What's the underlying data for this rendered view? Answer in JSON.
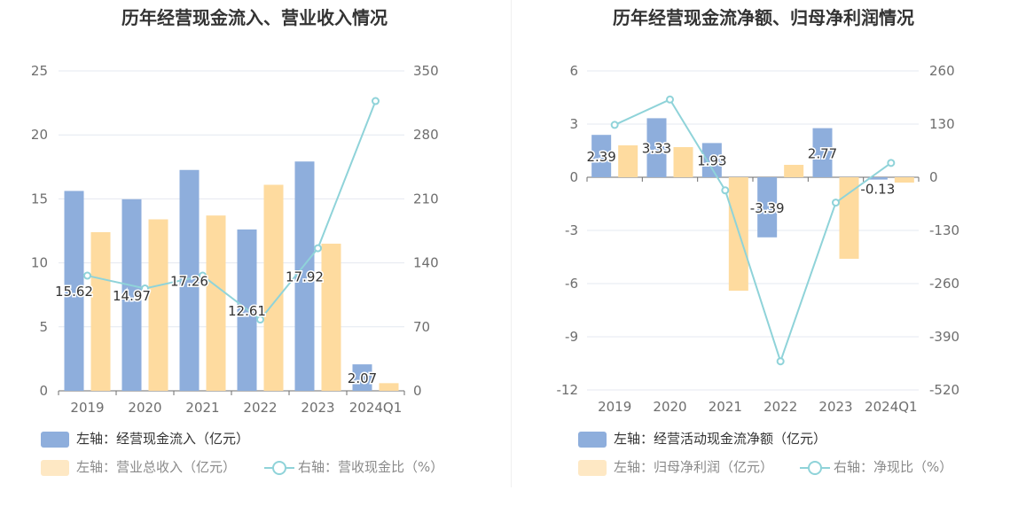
{
  "colors": {
    "bar1": "#8eaedc",
    "bar2": "#fedb9f",
    "line": "#8fd3d9",
    "grid": "#e4e8f0",
    "axis": "#6e6e6e"
  },
  "chart_data": [
    {
      "type": "bar",
      "title": "历年经营现金流入、营业收入情况",
      "categories": [
        "2019",
        "2020",
        "2021",
        "2022",
        "2023",
        "2024Q1"
      ],
      "y_left": {
        "min": 0,
        "max": 25,
        "ticks": [
          "0",
          "5",
          "10",
          "15",
          "20",
          "25"
        ]
      },
      "y_right": {
        "min": 0,
        "max": 350,
        "ticks": [
          "0",
          "70",
          "140",
          "210",
          "280",
          "350"
        ]
      },
      "series": [
        {
          "name": "左轴：经营现金流入（亿元）",
          "kind": "bar",
          "axis": "left",
          "values": [
            15.62,
            14.97,
            17.26,
            12.61,
            17.92,
            2.07
          ],
          "labels": [
            "15.62",
            "14.97",
            "17.26",
            "12.61",
            "17.92",
            "2.07"
          ]
        },
        {
          "name": "左轴：营业总收入（亿元）",
          "kind": "bar",
          "axis": "left",
          "values": [
            12.4,
            13.4,
            13.7,
            16.1,
            11.5,
            0.6
          ]
        },
        {
          "name": "右轴：营收现金比（%）",
          "kind": "line",
          "axis": "right",
          "values": [
            126,
            112,
            126,
            78,
            156,
            317
          ]
        }
      ],
      "legend": "bottom"
    },
    {
      "type": "bar",
      "title": "历年经营现金流净额、归母净利润情况",
      "categories": [
        "2019",
        "2020",
        "2021",
        "2022",
        "2023",
        "2024Q1"
      ],
      "y_left": {
        "min": -12,
        "max": 6,
        "ticks": [
          "-12",
          "-9",
          "-6",
          "-3",
          "0",
          "3",
          "6"
        ]
      },
      "y_right": {
        "min": -520,
        "max": 260,
        "ticks": [
          "-520",
          "-390",
          "-260",
          "-130",
          "0",
          "130",
          "260"
        ]
      },
      "series": [
        {
          "name": "左轴：经营活动现金流净额（亿元）",
          "kind": "bar",
          "axis": "left",
          "values": [
            2.39,
            3.33,
            1.93,
            -3.39,
            2.77,
            -0.13
          ],
          "labels": [
            "2.39",
            "3.33",
            "1.93",
            "-3.39",
            "2.77",
            "-0.13"
          ]
        },
        {
          "name": "左轴：归母净利润（亿元）",
          "kind": "bar",
          "axis": "left",
          "values": [
            1.8,
            1.7,
            -6.4,
            0.7,
            -4.6,
            -0.3
          ]
        },
        {
          "name": "右轴：净现比（%）",
          "kind": "line",
          "axis": "right",
          "values": [
            128,
            190,
            -32,
            -450,
            -62,
            35
          ]
        }
      ],
      "legend": "bottom"
    }
  ]
}
